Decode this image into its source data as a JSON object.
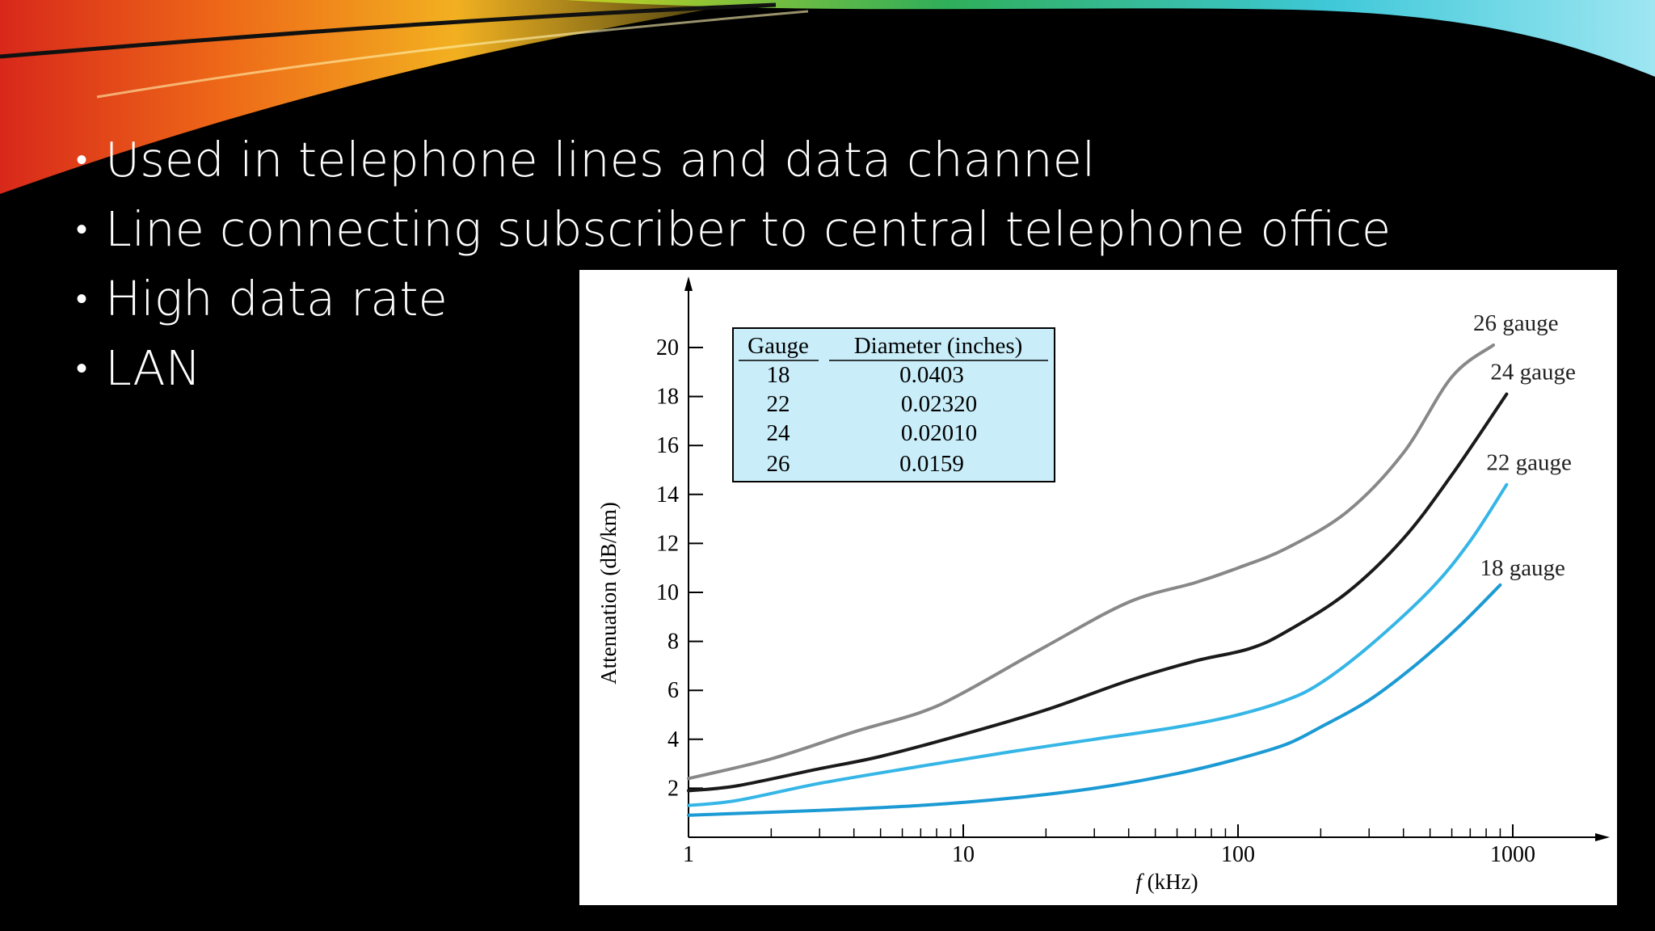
{
  "bullets": [
    "Used in telephone lines and data channel",
    "Line connecting subscriber to central telephone office",
    "High data rate",
    "LAN"
  ],
  "colors": {
    "background": "#000000",
    "text": "#ffffff",
    "gauge_26": "#888888",
    "gauge_24": "#1a1a1a",
    "gauge_22": "#35b6e6",
    "gauge_18": "#1b9ad4",
    "table_fill": "#c9eefa"
  },
  "chart_data": {
    "type": "line",
    "xscale": "log",
    "xlim": [
      1,
      1000
    ],
    "ylim": [
      0,
      21
    ],
    "xlabel_italic": "f",
    "xlabel_rest": " (kHz)",
    "ylabel": "Attenuation (dB/km)",
    "xticks": [
      "1",
      "10",
      "100",
      "1000"
    ],
    "yticks": [
      "2",
      "4",
      "6",
      "8",
      "10",
      "12",
      "14",
      "16",
      "18",
      "20"
    ],
    "ytick_values": [
      2,
      4,
      6,
      8,
      10,
      12,
      14,
      16,
      18,
      20
    ],
    "series": [
      {
        "name": "26 gauge",
        "color": "#888888",
        "x": [
          1,
          2,
          4,
          7,
          10,
          20,
          40,
          70,
          100,
          150,
          250,
          400,
          600,
          850
        ],
        "y": [
          2.4,
          3.2,
          4.3,
          5.1,
          5.9,
          7.8,
          9.6,
          10.4,
          11.0,
          11.8,
          13.3,
          15.7,
          18.8,
          20.1
        ]
      },
      {
        "name": "24 gauge",
        "color": "#1a1a1a",
        "x": [
          1,
          1.5,
          3,
          5,
          10,
          20,
          40,
          70,
          110,
          150,
          250,
          400,
          600,
          950
        ],
        "y": [
          1.9,
          2.1,
          2.8,
          3.3,
          4.2,
          5.2,
          6.4,
          7.2,
          7.7,
          8.4,
          10.0,
          12.2,
          14.8,
          18.1
        ]
      },
      {
        "name": "22 gauge",
        "color": "#35b6e6",
        "x": [
          1,
          1.5,
          3,
          7,
          15,
          30,
          60,
          100,
          150,
          200,
          300,
          500,
          700,
          950
        ],
        "y": [
          1.3,
          1.5,
          2.2,
          2.9,
          3.5,
          4.0,
          4.5,
          5.0,
          5.6,
          6.3,
          7.8,
          10.1,
          12.1,
          14.4
        ]
      },
      {
        "name": "18 gauge",
        "color": "#1b9ad4",
        "x": [
          1,
          3,
          7,
          15,
          30,
          60,
          100,
          150,
          200,
          300,
          450,
          650,
          900
        ],
        "y": [
          0.9,
          1.1,
          1.3,
          1.6,
          2.0,
          2.6,
          3.2,
          3.8,
          4.5,
          5.6,
          7.1,
          8.7,
          10.3
        ]
      }
    ],
    "table": {
      "headers": [
        "Gauge",
        "Diameter (inches)"
      ],
      "rows": [
        [
          "18",
          "0.0403"
        ],
        [
          "22",
          "0.02320"
        ],
        [
          "24",
          "0.02010"
        ],
        [
          "26",
          "0.0159"
        ]
      ]
    }
  }
}
